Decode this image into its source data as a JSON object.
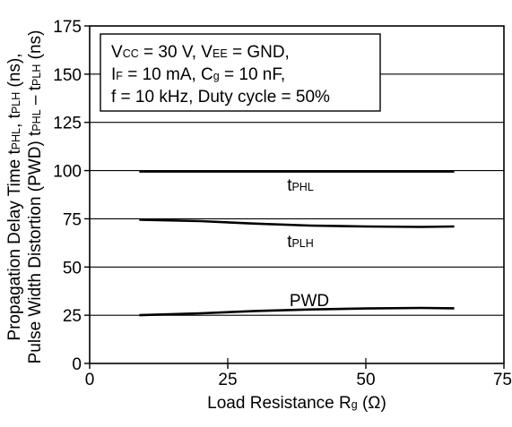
{
  "chart_data": {
    "type": "line",
    "xlabel": "Load Resistance  Rg (Ω)",
    "xlabel_parts": {
      "main": "Load Resistance  R",
      "sub": "g",
      "unit": " (Ω)"
    },
    "ylabel_line1_parts": {
      "a": "Propagation Delay Time  t",
      "s1": "PHL",
      "b": ", t",
      "s2": "PLH",
      "c": " (ns),"
    },
    "ylabel_line2_parts": {
      "a": "Pulse Width Distortion (PWD)  t",
      "s1": "PHL",
      "b": " – t",
      "s2": "PLH",
      "c": " (ns)"
    },
    "xlim": [
      0,
      75
    ],
    "ylim": [
      0,
      175
    ],
    "x_ticks": [
      0,
      25,
      50,
      75
    ],
    "y_ticks": [
      0,
      25,
      50,
      75,
      100,
      125,
      150,
      175
    ],
    "grid": "horizontal",
    "annotation_lines": [
      {
        "parts": [
          [
            "V",
            ""
          ],
          [
            "CC",
            "sub"
          ],
          [
            " = 30 V, V",
            ""
          ],
          [
            "EE",
            "sub"
          ],
          [
            " = GND,",
            ""
          ]
        ]
      },
      {
        "parts": [
          [
            "I",
            ""
          ],
          [
            "F",
            "sub"
          ],
          [
            " = 10 mA, C",
            ""
          ],
          [
            "g",
            "sub"
          ],
          [
            " = 10 nF,",
            ""
          ]
        ]
      },
      {
        "parts": [
          [
            "f = 10 kHz, Duty cycle = 50%",
            ""
          ]
        ]
      }
    ],
    "series": [
      {
        "name": "tPHL",
        "label_parts": [
          [
            "t",
            ""
          ],
          [
            "PHL",
            "sub"
          ]
        ],
        "x": [
          9,
          20,
          30,
          40,
          50,
          60,
          66
        ],
        "y": [
          99.5,
          99.5,
          99.5,
          99.5,
          99.5,
          99.5,
          99.5
        ]
      },
      {
        "name": "tPLH",
        "label_parts": [
          [
            "t",
            ""
          ],
          [
            "PLH",
            "sub"
          ]
        ],
        "x": [
          9,
          20,
          30,
          40,
          50,
          60,
          66
        ],
        "y": [
          74.5,
          73.8,
          72.5,
          71.5,
          71,
          70.8,
          71
        ]
      },
      {
        "name": "PWD",
        "label_parts": [
          [
            "PWD",
            ""
          ]
        ],
        "x": [
          9,
          20,
          30,
          40,
          50,
          60,
          66
        ],
        "y": [
          25,
          26,
          27.2,
          28,
          28.5,
          28.8,
          28.6
        ]
      }
    ]
  }
}
